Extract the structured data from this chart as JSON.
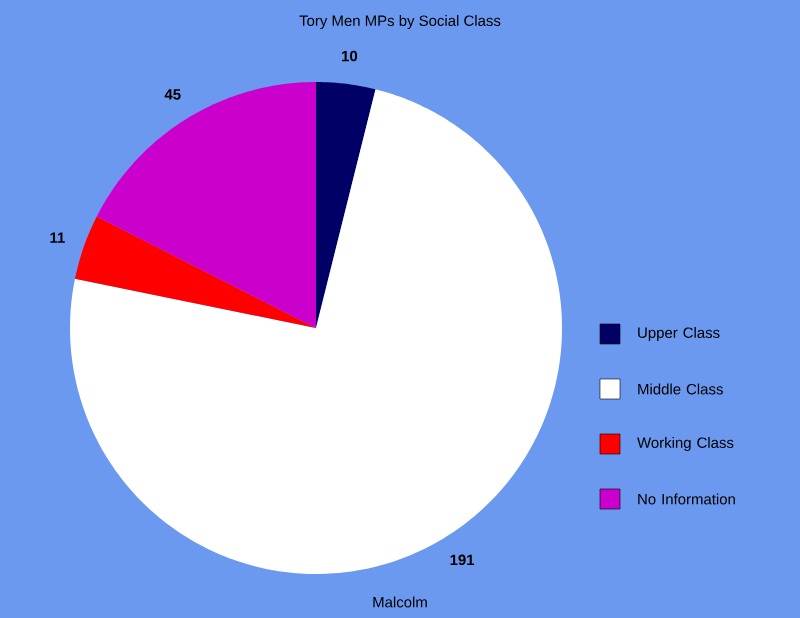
{
  "chart_data": {
    "type": "pie",
    "title": "Tory Men MPs by Social Class",
    "categories": [
      "Upper Class",
      "Middle Class",
      "Working Class",
      "No Information"
    ],
    "values": [
      10,
      191,
      11,
      45
    ],
    "colors": [
      "#000066",
      "#ffffff",
      "#ff0000",
      "#cc00cc"
    ],
    "data_labels": true,
    "legend": "right",
    "annotations": [
      "Malcolm"
    ]
  }
}
